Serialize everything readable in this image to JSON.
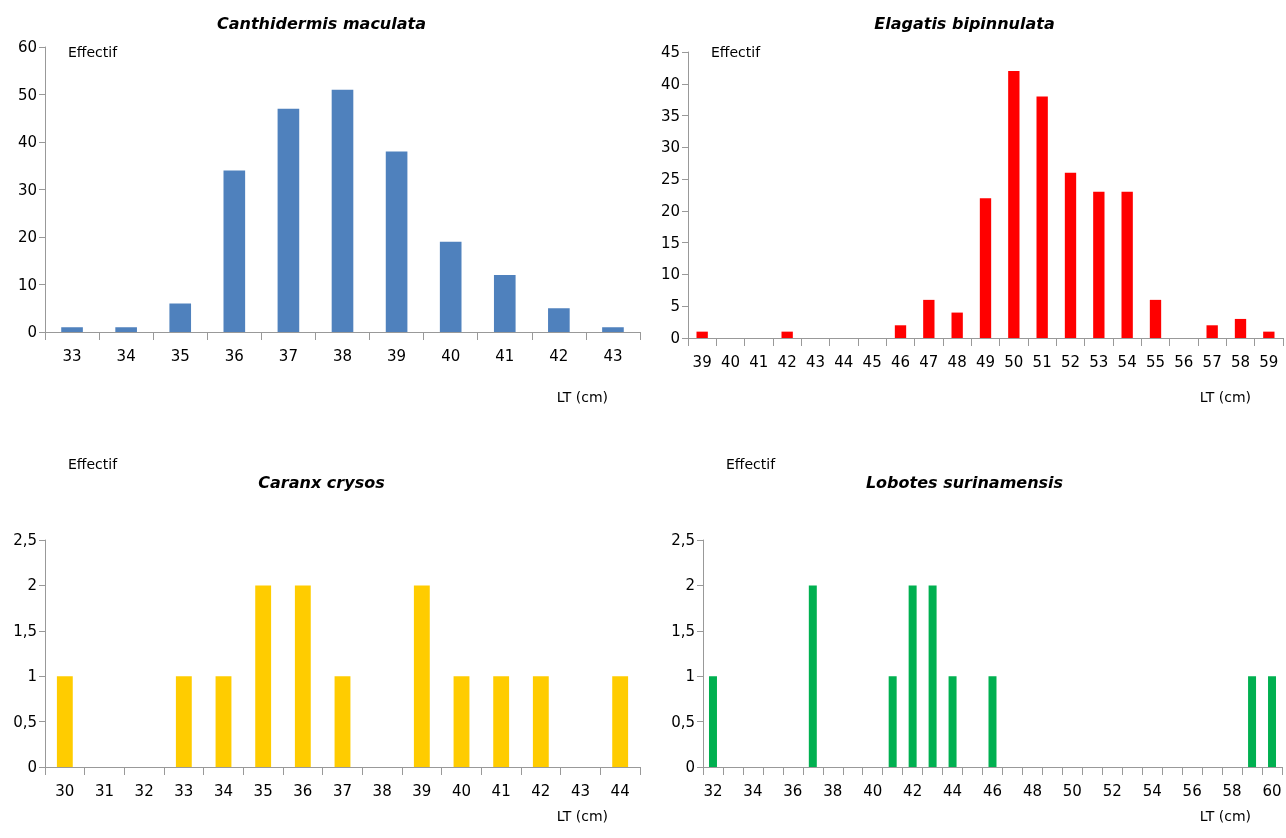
{
  "chart_data": [
    {
      "type": "bar",
      "title": "Canthidermis maculata",
      "ylabel": "Effectif",
      "xlabel": "LT (cm)",
      "categories": [
        "33",
        "34",
        "35",
        "36",
        "37",
        "38",
        "39",
        "40",
        "41",
        "42",
        "43"
      ],
      "values": [
        1,
        1,
        6,
        34,
        47,
        51,
        38,
        19,
        12,
        5,
        1
      ],
      "color": "#4f81bd",
      "ylim": [
        0,
        60
      ],
      "yticks": [
        0,
        10,
        20,
        30,
        40,
        50,
        60
      ],
      "grid": false
    },
    {
      "type": "bar",
      "title": "Elagatis bipinnulata",
      "ylabel": "Effectif",
      "xlabel": "LT (cm)",
      "categories": [
        "39",
        "40",
        "41",
        "42",
        "43",
        "44",
        "45",
        "46",
        "47",
        "48",
        "49",
        "50",
        "51",
        "52",
        "53",
        "54",
        "55",
        "56",
        "57",
        "58",
        "59"
      ],
      "values": [
        1,
        0,
        0,
        1,
        0,
        0,
        0,
        2,
        6,
        4,
        22,
        42,
        38,
        26,
        23,
        23,
        6,
        0,
        2,
        3,
        1
      ],
      "color": "#ff0000",
      "ylim": [
        0,
        45
      ],
      "yticks": [
        0,
        5,
        10,
        15,
        20,
        25,
        30,
        35,
        40,
        45
      ],
      "grid": false
    },
    {
      "type": "bar",
      "title": "Caranx crysos",
      "ylabel": "Effectif",
      "xlabel": "LT (cm)",
      "categories": [
        "30",
        "31",
        "32",
        "33",
        "34",
        "35",
        "36",
        "37",
        "38",
        "39",
        "40",
        "41",
        "42",
        "43",
        "44"
      ],
      "values": [
        1,
        0,
        0,
        1,
        1,
        2,
        2,
        1,
        0,
        2,
        1,
        1,
        1,
        0,
        1
      ],
      "color": "#ffcc00",
      "ylim": [
        0,
        2.5
      ],
      "yticks": [
        0,
        {
          "value": 0.5,
          "label": "0,5"
        },
        1,
        {
          "value": 1.5,
          "label": "1,5"
        },
        2,
        {
          "value": 2.5,
          "label": "2,5"
        }
      ],
      "grid": false
    },
    {
      "type": "bar",
      "title": "Lobotes surinamensis",
      "ylabel": "Effectif",
      "xlabel": "LT (cm)",
      "categories": [
        "32",
        null,
        "34",
        null,
        "36",
        null,
        "38",
        null,
        "40",
        null,
        "42",
        null,
        "44",
        null,
        "46",
        null,
        "48",
        null,
        "50",
        null,
        "52",
        null,
        "54",
        null,
        "56",
        null,
        "58",
        null,
        "60"
      ],
      "values": [
        1,
        0,
        0,
        0,
        0,
        2,
        0,
        0,
        0,
        1,
        2,
        2,
        1,
        0,
        1,
        0,
        0,
        0,
        0,
        0,
        0,
        0,
        0,
        0,
        0,
        0,
        0,
        1,
        1
      ],
      "color": "#00b050",
      "ylim": [
        0,
        2.5
      ],
      "yticks": [
        0,
        {
          "value": 0.5,
          "label": "0,5"
        },
        1,
        {
          "value": 1.5,
          "label": "1,5"
        },
        2,
        {
          "value": 2.5,
          "label": "2,5"
        }
      ],
      "grid": false
    }
  ]
}
